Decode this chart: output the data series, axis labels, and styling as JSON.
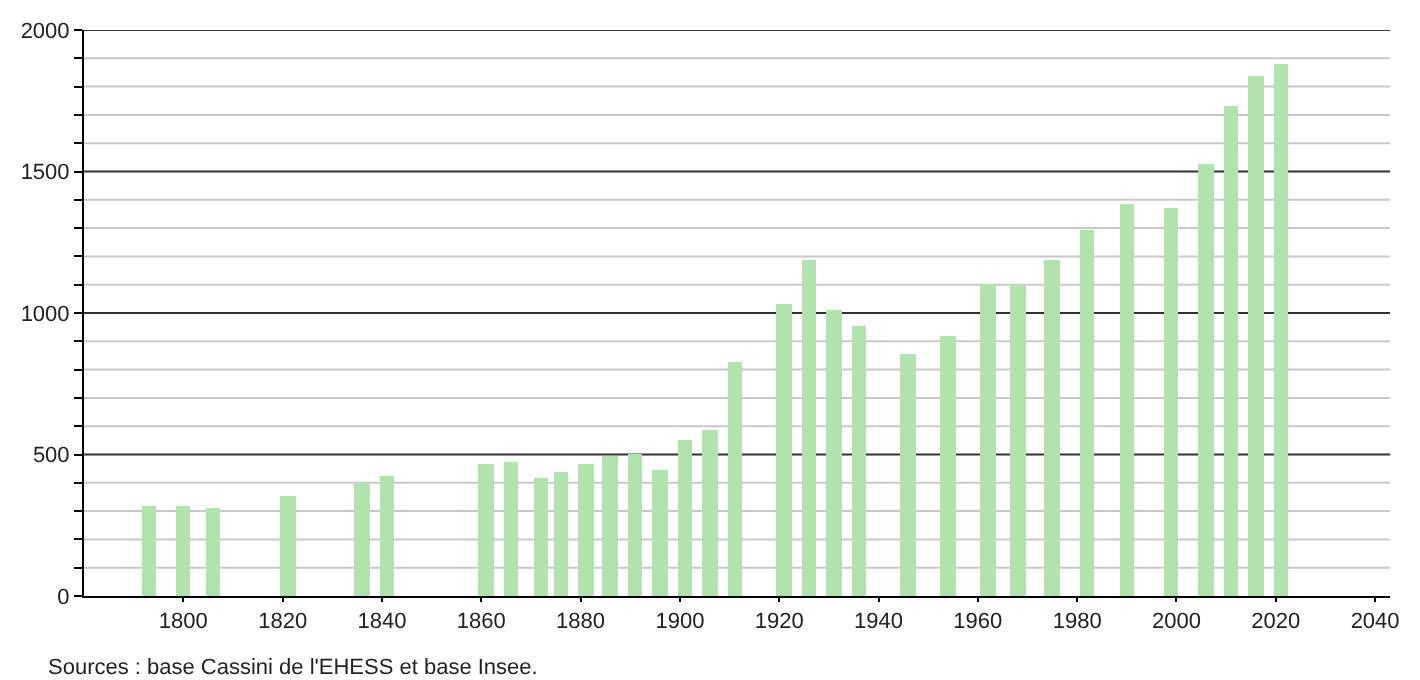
{
  "chart_data": {
    "type": "bar",
    "color": "#b2e3ae",
    "x": [
      1793,
      1800,
      1806,
      1821,
      1836,
      1841,
      1861,
      1866,
      1872,
      1876,
      1881,
      1886,
      1891,
      1896,
      1901,
      1906,
      1911,
      1921,
      1926,
      1931,
      1936,
      1946,
      1954,
      1962,
      1968,
      1975,
      1982,
      1990,
      1999,
      2006,
      2011,
      2016,
      2021
    ],
    "values": [
      317,
      317,
      308,
      356,
      395,
      421,
      467,
      476,
      418,
      441,
      467,
      492,
      501,
      446,
      552,
      584,
      828,
      1032,
      1188,
      1011,
      956,
      857,
      922,
      1101,
      1098,
      1188,
      1292,
      1386,
      1370,
      1529,
      1729,
      1839,
      1878
    ],
    "xlim": [
      1780,
      2043
    ],
    "xticks": [
      1800,
      1820,
      1840,
      1860,
      1880,
      1900,
      1920,
      1940,
      1960,
      1980,
      2000,
      2020,
      2040
    ],
    "ylim": [
      0,
      2000
    ],
    "yticks": [
      0,
      {
        "value": 100,
        "label": null
      },
      {
        "value": 200,
        "label": null
      },
      {
        "value": 300,
        "label": null
      },
      {
        "value": 400,
        "label": null
      },
      500,
      {
        "value": 600,
        "label": null
      },
      {
        "value": 700,
        "label": null
      },
      {
        "value": 800,
        "label": null
      },
      {
        "value": 900,
        "label": null
      },
      1000,
      {
        "value": 1100,
        "label": null
      },
      {
        "value": 1200,
        "label": null
      },
      {
        "value": 1300,
        "label": null
      },
      {
        "value": 1400,
        "label": null
      },
      1500,
      {
        "value": 1600,
        "label": null
      },
      {
        "value": 1700,
        "label": null
      },
      {
        "value": 1800,
        "label": null
      },
      {
        "value": 1900,
        "label": null
      },
      2000
    ],
    "grid": true,
    "annotations": [
      "Sources : base Cassini de l'EHESS et base Insee."
    ]
  }
}
